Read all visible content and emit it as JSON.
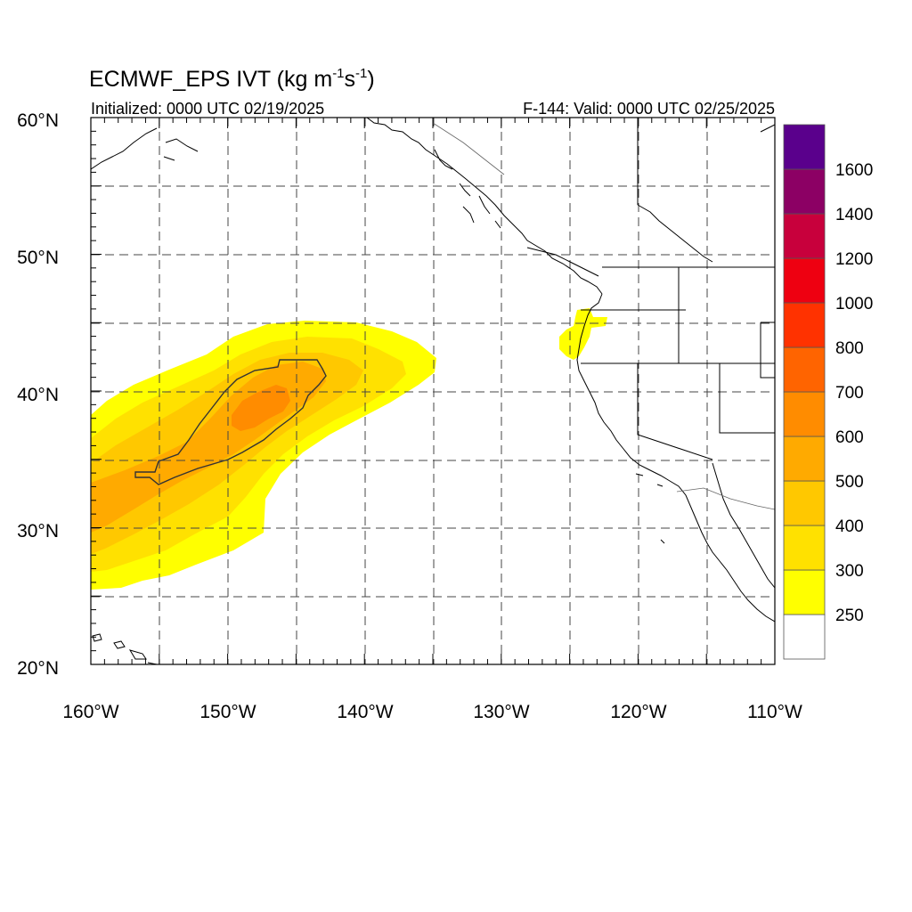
{
  "title": {
    "main": "ECMWF_EPS IVT (kg m",
    "sup1": "-1",
    "mid": "s",
    "sup2": "-1",
    "end": ")"
  },
  "subtitle": {
    "left": "Initialized: 0000 UTC 02/19/2025",
    "right": "F-144: Valid: 0000 UTC 02/25/2025"
  },
  "map": {
    "lon_range": [
      -160,
      -110
    ],
    "lat_range": [
      20,
      60
    ],
    "lon_labels": [
      "160°W",
      "150°W",
      "140°W",
      "130°W",
      "120°W",
      "110°W"
    ],
    "lat_labels": [
      "60°N",
      "50°N",
      "40°N",
      "30°N",
      "20°N"
    ],
    "grid": "dashed every 5°"
  },
  "colorbar": {
    "colors": [
      "#ffffff",
      "#ffff00",
      "#ffe100",
      "#ffc800",
      "#ffaa00",
      "#ff8c00",
      "#ff6400",
      "#ff3200",
      "#ee0011",
      "#c8003c",
      "#8c0064",
      "#5a008c"
    ],
    "labels": [
      "250",
      "300",
      "400",
      "500",
      "600",
      "700",
      "800",
      "1000",
      "1200",
      "1400",
      "1600"
    ]
  },
  "ivt_field": {
    "plume_core_contour_kg_m_s": 500,
    "max_region": "near 38–40°N, 145–148°W",
    "secondary_region": "Oregon coast ~42–45°N, 124°W"
  }
}
